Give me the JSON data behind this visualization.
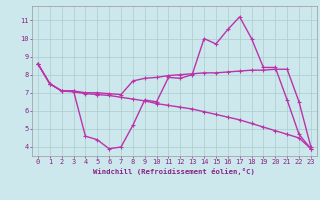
{
  "xlabel": "Windchill (Refroidissement éolien,°C)",
  "background_color": "#cce8ec",
  "grid_color": "#aacccc",
  "line_color": "#bb33aa",
  "xlim": [
    -0.5,
    23.5
  ],
  "ylim": [
    3.5,
    11.8
  ],
  "yticks": [
    4,
    5,
    6,
    7,
    8,
    9,
    10,
    11
  ],
  "xticks": [
    0,
    1,
    2,
    3,
    4,
    5,
    6,
    7,
    8,
    9,
    10,
    11,
    12,
    13,
    14,
    15,
    16,
    17,
    18,
    19,
    20,
    21,
    22,
    23
  ],
  "series1_x": [
    0,
    1,
    2,
    3,
    4,
    5,
    6,
    7,
    8,
    9,
    10,
    11,
    12,
    13,
    14,
    15,
    16,
    17,
    18,
    19,
    20,
    21,
    22,
    23
  ],
  "series1_y": [
    8.6,
    7.5,
    7.1,
    7.1,
    4.6,
    4.4,
    3.9,
    4.0,
    5.2,
    6.6,
    6.5,
    7.85,
    7.8,
    8.0,
    10.0,
    9.7,
    10.5,
    11.2,
    10.0,
    8.4,
    8.4,
    6.6,
    4.7,
    3.9
  ],
  "series2_x": [
    0,
    1,
    2,
    3,
    4,
    5,
    6,
    7,
    8,
    9,
    10,
    11,
    12,
    13,
    14,
    15,
    16,
    17,
    18,
    19,
    20,
    21,
    22,
    23
  ],
  "series2_y": [
    8.6,
    7.5,
    7.1,
    7.1,
    7.0,
    7.0,
    6.95,
    6.9,
    7.65,
    7.8,
    7.85,
    7.95,
    8.0,
    8.05,
    8.1,
    8.1,
    8.15,
    8.2,
    8.25,
    8.25,
    8.3,
    8.3,
    6.5,
    4.0
  ],
  "series3_x": [
    0,
    1,
    2,
    3,
    4,
    5,
    6,
    7,
    8,
    9,
    10,
    11,
    12,
    13,
    14,
    15,
    16,
    17,
    18,
    19,
    20,
    21,
    22,
    23
  ],
  "series3_y": [
    8.6,
    7.5,
    7.1,
    7.05,
    6.95,
    6.9,
    6.85,
    6.75,
    6.65,
    6.55,
    6.4,
    6.3,
    6.2,
    6.1,
    5.95,
    5.8,
    5.65,
    5.5,
    5.3,
    5.1,
    4.9,
    4.7,
    4.5,
    3.9
  ],
  "tick_color": "#882288",
  "tick_fontsize": 5.0,
  "xlabel_fontsize": 5.2,
  "linewidth": 1.0,
  "markersize": 3.5
}
